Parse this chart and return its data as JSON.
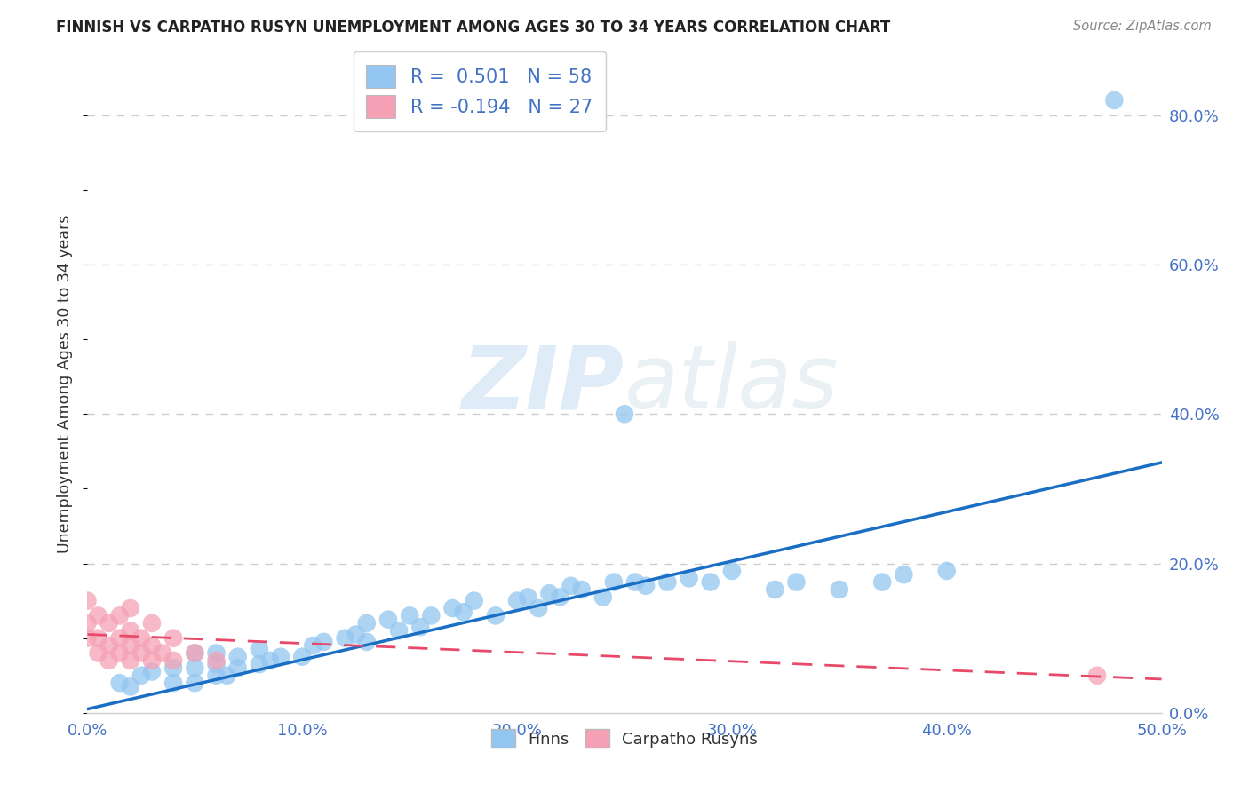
{
  "title": "FINNISH VS CARPATHO RUSYN UNEMPLOYMENT AMONG AGES 30 TO 34 YEARS CORRELATION CHART",
  "source": "Source: ZipAtlas.com",
  "ylabel": "Unemployment Among Ages 30 to 34 years",
  "xlim": [
    0.0,
    0.5
  ],
  "ylim": [
    0.0,
    0.88
  ],
  "yticks": [
    0.0,
    0.2,
    0.4,
    0.6,
    0.8
  ],
  "xticks": [
    0.0,
    0.1,
    0.2,
    0.3,
    0.4,
    0.5
  ],
  "finn_R": 0.501,
  "finn_N": 58,
  "rusyn_R": -0.194,
  "rusyn_N": 27,
  "finn_color": "#93c6f0",
  "rusyn_color": "#f5a0b5",
  "finn_line_color": "#1a6fc4",
  "rusyn_line_color": "#e8496a",
  "background_color": "#ffffff",
  "grid_color": "#cccccc",
  "finn_x": [
    0.015,
    0.02,
    0.025,
    0.03,
    0.04,
    0.04,
    0.05,
    0.05,
    0.05,
    0.06,
    0.06,
    0.06,
    0.065,
    0.07,
    0.07,
    0.08,
    0.08,
    0.085,
    0.09,
    0.1,
    0.105,
    0.11,
    0.12,
    0.125,
    0.13,
    0.13,
    0.14,
    0.145,
    0.15,
    0.155,
    0.16,
    0.17,
    0.175,
    0.18,
    0.19,
    0.2,
    0.205,
    0.21,
    0.215,
    0.22,
    0.225,
    0.23,
    0.24,
    0.245,
    0.25,
    0.255,
    0.26,
    0.27,
    0.28,
    0.29,
    0.3,
    0.32,
    0.33,
    0.35,
    0.37,
    0.38,
    0.4,
    0.478
  ],
  "finn_y": [
    0.04,
    0.035,
    0.05,
    0.055,
    0.04,
    0.06,
    0.04,
    0.06,
    0.08,
    0.05,
    0.065,
    0.08,
    0.05,
    0.06,
    0.075,
    0.065,
    0.085,
    0.07,
    0.075,
    0.075,
    0.09,
    0.095,
    0.1,
    0.105,
    0.12,
    0.095,
    0.125,
    0.11,
    0.13,
    0.115,
    0.13,
    0.14,
    0.135,
    0.15,
    0.13,
    0.15,
    0.155,
    0.14,
    0.16,
    0.155,
    0.17,
    0.165,
    0.155,
    0.175,
    0.4,
    0.175,
    0.17,
    0.175,
    0.18,
    0.175,
    0.19,
    0.165,
    0.175,
    0.165,
    0.175,
    0.185,
    0.19,
    0.82
  ],
  "rusyn_x": [
    0.0,
    0.0,
    0.0,
    0.005,
    0.005,
    0.005,
    0.01,
    0.01,
    0.01,
    0.015,
    0.015,
    0.015,
    0.02,
    0.02,
    0.02,
    0.02,
    0.025,
    0.025,
    0.03,
    0.03,
    0.03,
    0.035,
    0.04,
    0.04,
    0.05,
    0.06,
    0.47
  ],
  "rusyn_y": [
    0.1,
    0.12,
    0.15,
    0.08,
    0.1,
    0.13,
    0.07,
    0.09,
    0.12,
    0.08,
    0.1,
    0.13,
    0.07,
    0.09,
    0.11,
    0.14,
    0.08,
    0.1,
    0.07,
    0.09,
    0.12,
    0.08,
    0.07,
    0.1,
    0.08,
    0.07,
    0.05
  ],
  "finn_trend_x0": 0.0,
  "finn_trend_y0": 0.005,
  "finn_trend_x1": 0.5,
  "finn_trend_y1": 0.335,
  "rusyn_trend_x0": 0.0,
  "rusyn_trend_y0": 0.105,
  "rusyn_trend_x1": 0.5,
  "rusyn_trend_y1": 0.045
}
